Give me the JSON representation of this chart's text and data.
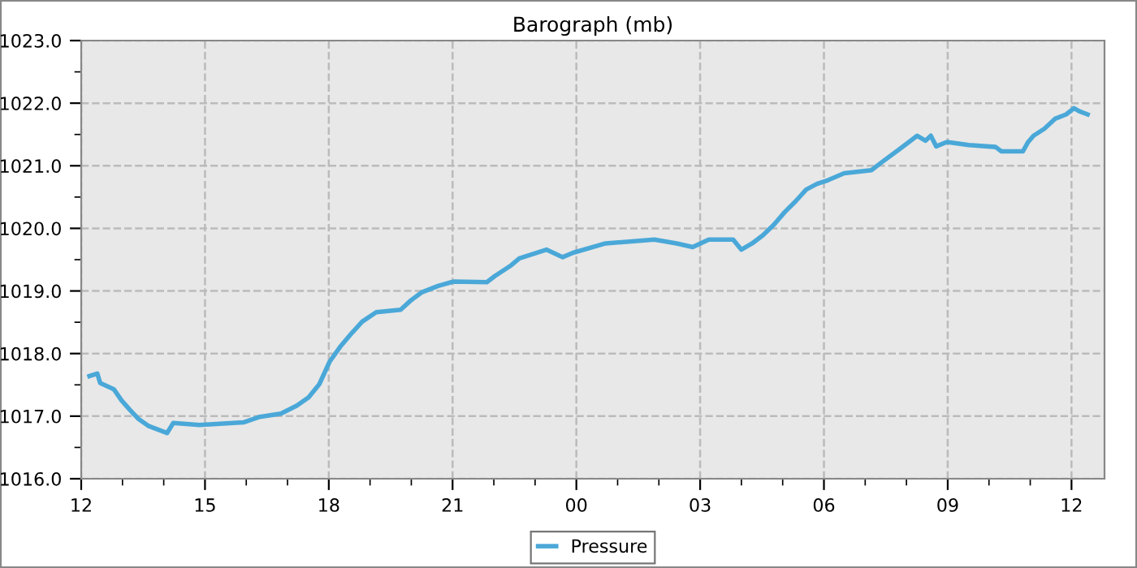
{
  "chart_data": {
    "type": "line",
    "title": "Barograph (mb)",
    "xlim": [
      12,
      36.8
    ],
    "ylim": [
      1016,
      1023
    ],
    "xticks": [
      {
        "value": 12,
        "label": "12"
      },
      {
        "value": 13,
        "label": null
      },
      {
        "value": 14,
        "label": null
      },
      {
        "value": 15,
        "label": "15"
      },
      {
        "value": 16,
        "label": null
      },
      {
        "value": 17,
        "label": null
      },
      {
        "value": 18,
        "label": "18"
      },
      {
        "value": 19,
        "label": null
      },
      {
        "value": 20,
        "label": null
      },
      {
        "value": 21,
        "label": "21"
      },
      {
        "value": 22,
        "label": null
      },
      {
        "value": 23,
        "label": null
      },
      {
        "value": 24,
        "label": "00"
      },
      {
        "value": 25,
        "label": null
      },
      {
        "value": 26,
        "label": null
      },
      {
        "value": 27,
        "label": "03"
      },
      {
        "value": 28,
        "label": null
      },
      {
        "value": 29,
        "label": null
      },
      {
        "value": 30,
        "label": "06"
      },
      {
        "value": 31,
        "label": null
      },
      {
        "value": 32,
        "label": null
      },
      {
        "value": 33,
        "label": "09"
      },
      {
        "value": 34,
        "label": null
      },
      {
        "value": 35,
        "label": null
      },
      {
        "value": 36,
        "label": "12"
      }
    ],
    "yticks": [
      {
        "value": 1016,
        "label": "1016.0"
      },
      {
        "value": 1016.5,
        "label": null
      },
      {
        "value": 1017,
        "label": "1017.0"
      },
      {
        "value": 1017.5,
        "label": null
      },
      {
        "value": 1018,
        "label": "1018.0"
      },
      {
        "value": 1018.5,
        "label": null
      },
      {
        "value": 1019,
        "label": "1019.0"
      },
      {
        "value": 1019.5,
        "label": null
      },
      {
        "value": 1020,
        "label": "1020.0"
      },
      {
        "value": 1020.5,
        "label": null
      },
      {
        "value": 1021,
        "label": "1021.0"
      },
      {
        "value": 1021.5,
        "label": null
      },
      {
        "value": 1022,
        "label": "1022.0"
      },
      {
        "value": 1022.5,
        "label": null
      },
      {
        "value": 1023,
        "label": "1023.0"
      }
    ],
    "grid": true,
    "legend": "bottom",
    "marker": "none",
    "line_style": "solid",
    "series": [
      {
        "name": "Pressure",
        "color": "#4aa8d8",
        "x": [
          12.2,
          12.39,
          12.46,
          12.79,
          12.98,
          13.18,
          13.38,
          13.64,
          14.08,
          14.23,
          14.87,
          15.93,
          16.33,
          16.84,
          17.23,
          17.51,
          17.77,
          18.02,
          18.29,
          18.56,
          18.81,
          19.15,
          19.74,
          19.99,
          20.26,
          20.65,
          20.97,
          21.05,
          21.83,
          22.03,
          22.42,
          22.62,
          23.28,
          23.67,
          23.92,
          24.71,
          25.89,
          26.43,
          26.82,
          27.21,
          27.8,
          28.0,
          28.26,
          28.52,
          28.79,
          29.05,
          29.31,
          29.57,
          29.83,
          30.1,
          30.49,
          31.15,
          31.41,
          31.8,
          32.06,
          32.26,
          32.46,
          32.59,
          32.72,
          32.98,
          33.51,
          34.16,
          34.3,
          34.82,
          34.95,
          35.08,
          35.34,
          35.6,
          35.87,
          36.06,
          36.19,
          36.39
        ],
        "values": [
          1017.64,
          1017.68,
          1017.53,
          1017.43,
          1017.25,
          1017.1,
          1016.96,
          1016.84,
          1016.73,
          1016.89,
          1016.86,
          1016.9,
          1016.99,
          1017.04,
          1017.17,
          1017.3,
          1017.51,
          1017.87,
          1018.12,
          1018.33,
          1018.51,
          1018.66,
          1018.7,
          1018.85,
          1018.98,
          1019.08,
          1019.14,
          1019.15,
          1019.14,
          1019.24,
          1019.41,
          1019.52,
          1019.66,
          1019.54,
          1019.61,
          1019.76,
          1019.82,
          1019.76,
          1019.7,
          1019.82,
          1019.82,
          1019.66,
          1019.76,
          1019.89,
          1020.06,
          1020.26,
          1020.43,
          1020.62,
          1020.71,
          1020.77,
          1020.88,
          1020.93,
          1021.06,
          1021.25,
          1021.38,
          1021.48,
          1021.4,
          1021.48,
          1021.31,
          1021.38,
          1021.33,
          1021.3,
          1021.23,
          1021.23,
          1021.38,
          1021.48,
          1021.59,
          1021.75,
          1021.82,
          1021.92,
          1021.87,
          1021.82
        ]
      }
    ]
  }
}
